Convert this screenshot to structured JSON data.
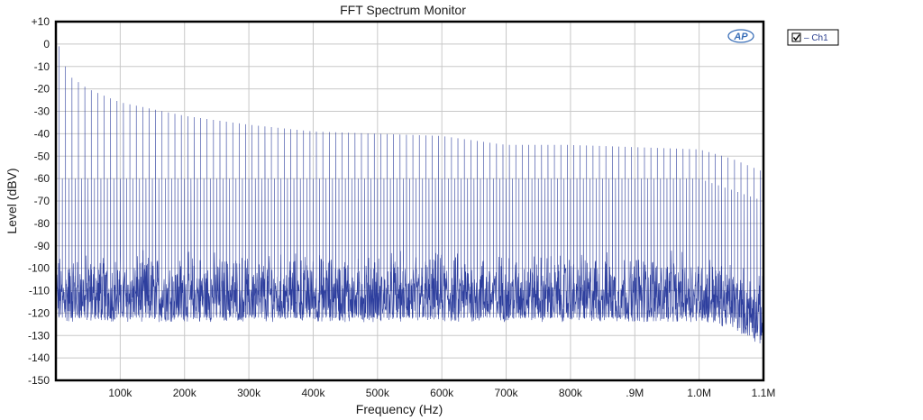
{
  "chart_data": {
    "type": "line",
    "title": "FFT Spectrum Monitor",
    "xlabel": "Frequency (Hz)",
    "ylabel": "Level (dBV)",
    "xlim": [
      0,
      1100000
    ],
    "ylim": [
      -150,
      10
    ],
    "x_ticks": [
      {
        "value": 100000,
        "label": "100k"
      },
      {
        "value": 200000,
        "label": "200k"
      },
      {
        "value": 300000,
        "label": "300k"
      },
      {
        "value": 400000,
        "label": "400k"
      },
      {
        "value": 500000,
        "label": "500k"
      },
      {
        "value": 600000,
        "label": "600k"
      },
      {
        "value": 700000,
        "label": "700k"
      },
      {
        "value": 800000,
        "label": "800k"
      },
      {
        "value": 900000,
        "label": ".9M"
      },
      {
        "value": 1000000,
        "label": "1.0M"
      },
      {
        "value": 1100000,
        "label": "1.1M"
      }
    ],
    "y_ticks": [
      {
        "value": 10,
        "label": "+10"
      },
      {
        "value": 0,
        "label": "0"
      },
      {
        "value": -10,
        "label": "-10"
      },
      {
        "value": -20,
        "label": "-20"
      },
      {
        "value": -30,
        "label": "-30"
      },
      {
        "value": -40,
        "label": "-40"
      },
      {
        "value": -50,
        "label": "-50"
      },
      {
        "value": -60,
        "label": "-60"
      },
      {
        "value": -70,
        "label": "-70"
      },
      {
        "value": -80,
        "label": "-80"
      },
      {
        "value": -90,
        "label": "-90"
      },
      {
        "value": -100,
        "label": "-100"
      },
      {
        "value": -110,
        "label": "-110"
      },
      {
        "value": -120,
        "label": "-120"
      },
      {
        "value": -130,
        "label": "-130"
      },
      {
        "value": -140,
        "label": "-140"
      },
      {
        "value": -150,
        "label": "-150"
      }
    ],
    "grid": true,
    "legend_position": "top-right-outside",
    "series": [
      {
        "name": "Ch1",
        "color": "#2e3f9e",
        "fundamental_hz": 5000,
        "fundamental_dbv": -1,
        "odd_harmonic_envelope": [
          {
            "x": 15000,
            "y": -10
          },
          {
            "x": 25000,
            "y": -15
          },
          {
            "x": 50000,
            "y": -20
          },
          {
            "x": 100000,
            "y": -26
          },
          {
            "x": 200000,
            "y": -32
          },
          {
            "x": 300000,
            "y": -36
          },
          {
            "x": 400000,
            "y": -39
          },
          {
            "x": 500000,
            "y": -40
          },
          {
            "x": 600000,
            "y": -41
          },
          {
            "x": 700000,
            "y": -45
          },
          {
            "x": 800000,
            "y": -45
          },
          {
            "x": 900000,
            "y": -46
          },
          {
            "x": 1000000,
            "y": -47
          },
          {
            "x": 1050000,
            "y": -51
          },
          {
            "x": 1100000,
            "y": -57
          }
        ],
        "even_harmonic_level_dbv": -60,
        "noise_floor_dbv": [
          -124,
          -91
        ],
        "noise_floor_high_end": [
          {
            "x": 1000000,
            "y": -124
          },
          {
            "x": 1050000,
            "y": -127
          },
          {
            "x": 1100000,
            "y": -135
          }
        ]
      }
    ]
  },
  "legend": {
    "entries": [
      {
        "label": "– Ch1",
        "checked": true
      }
    ]
  },
  "logo": {
    "text": "AP"
  },
  "colors": {
    "trace": "#2e3f9e",
    "plot_border": "#000000",
    "grid": "#c8c8c8",
    "legend_text": "#2a3f8f"
  }
}
